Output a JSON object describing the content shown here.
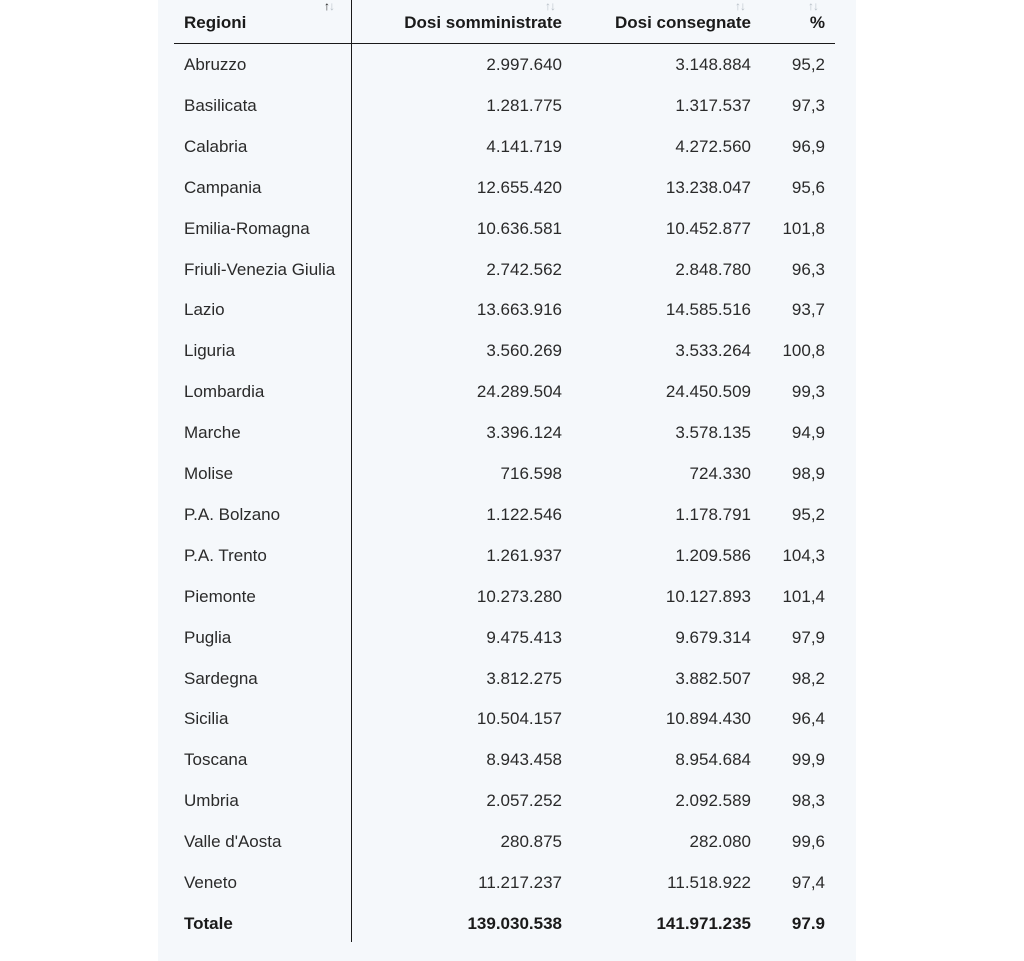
{
  "table": {
    "headers": {
      "region": "Regioni",
      "administered": "Dosi somministrate",
      "delivered": "Dosi consegnate",
      "percent": "%"
    },
    "sort_icon": "↑↓",
    "rows": [
      {
        "region": "Abruzzo",
        "administered": "2.997.640",
        "delivered": "3.148.884",
        "percent": "95,2"
      },
      {
        "region": "Basilicata",
        "administered": "1.281.775",
        "delivered": "1.317.537",
        "percent": "97,3"
      },
      {
        "region": "Calabria",
        "administered": "4.141.719",
        "delivered": "4.272.560",
        "percent": "96,9"
      },
      {
        "region": "Campania",
        "administered": "12.655.420",
        "delivered": "13.238.047",
        "percent": "95,6"
      },
      {
        "region": "Emilia-Romagna",
        "administered": "10.636.581",
        "delivered": "10.452.877",
        "percent": "101,8"
      },
      {
        "region": "Friuli-Venezia Giulia",
        "administered": "2.742.562",
        "delivered": "2.848.780",
        "percent": "96,3"
      },
      {
        "region": "Lazio",
        "administered": "13.663.916",
        "delivered": "14.585.516",
        "percent": "93,7"
      },
      {
        "region": "Liguria",
        "administered": "3.560.269",
        "delivered": "3.533.264",
        "percent": "100,8"
      },
      {
        "region": "Lombardia",
        "administered": "24.289.504",
        "delivered": "24.450.509",
        "percent": "99,3"
      },
      {
        "region": "Marche",
        "administered": "3.396.124",
        "delivered": "3.578.135",
        "percent": "94,9"
      },
      {
        "region": "Molise",
        "administered": "716.598",
        "delivered": "724.330",
        "percent": "98,9"
      },
      {
        "region": "P.A. Bolzano",
        "administered": "1.122.546",
        "delivered": "1.178.791",
        "percent": "95,2"
      },
      {
        "region": "P.A. Trento",
        "administered": "1.261.937",
        "delivered": "1.209.586",
        "percent": "104,3"
      },
      {
        "region": "Piemonte",
        "administered": "10.273.280",
        "delivered": "10.127.893",
        "percent": "101,4"
      },
      {
        "region": "Puglia",
        "administered": "9.475.413",
        "delivered": "9.679.314",
        "percent": "97,9"
      },
      {
        "region": "Sardegna",
        "administered": "3.812.275",
        "delivered": "3.882.507",
        "percent": "98,2"
      },
      {
        "region": "Sicilia",
        "administered": "10.504.157",
        "delivered": "10.894.430",
        "percent": "96,4"
      },
      {
        "region": "Toscana",
        "administered": "8.943.458",
        "delivered": "8.954.684",
        "percent": "99,9"
      },
      {
        "region": "Umbria",
        "administered": "2.057.252",
        "delivered": "2.092.589",
        "percent": "98,3"
      },
      {
        "region": "Valle d'Aosta",
        "administered": "280.875",
        "delivered": "282.080",
        "percent": "99,6"
      },
      {
        "region": "Veneto",
        "administered": "11.217.237",
        "delivered": "11.518.922",
        "percent": "97,4"
      }
    ],
    "total": {
      "region": "Totale",
      "administered": "139.030.538",
      "delivered": "141.971.235",
      "percent": "97.9"
    }
  }
}
